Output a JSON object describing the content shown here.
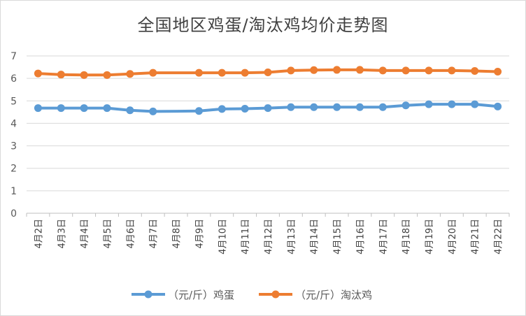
{
  "chart_data": {
    "type": "line",
    "title": "全国地区鸡蛋/淘汰鸡均价走势图",
    "categories": [
      "4月2日",
      "4月3日",
      "4月4日",
      "4月5日",
      "4月6日",
      "4月7日",
      "4月8日",
      "4月9日",
      "4月10日",
      "4月11日",
      "4月12日",
      "4月13日",
      "4月14日",
      "4月15日",
      "4月16日",
      "4月17日",
      "4月18日",
      "4月19日",
      "4月20日",
      "4月21日",
      "4月22日"
    ],
    "series": [
      {
        "name": "（元/斤）鸡蛋",
        "color": "#5b9bd5",
        "values": [
          4.68,
          4.68,
          4.68,
          4.68,
          4.58,
          4.53,
          null,
          4.55,
          4.64,
          4.65,
          4.68,
          4.72,
          4.72,
          4.72,
          4.72,
          4.72,
          4.8,
          4.85,
          4.85,
          4.85,
          4.75
        ]
      },
      {
        "name": "（元/斤）淘汰鸡",
        "color": "#ed7d31",
        "values": [
          6.22,
          6.17,
          6.15,
          6.15,
          6.2,
          6.25,
          null,
          6.25,
          6.25,
          6.25,
          6.27,
          6.35,
          6.37,
          6.38,
          6.38,
          6.35,
          6.35,
          6.35,
          6.35,
          6.33,
          6.3
        ]
      }
    ],
    "yticks": [
      0,
      1,
      2,
      3,
      4,
      5,
      6,
      7
    ],
    "ylim": [
      0,
      7
    ],
    "grid": true,
    "legend": "bottom"
  }
}
